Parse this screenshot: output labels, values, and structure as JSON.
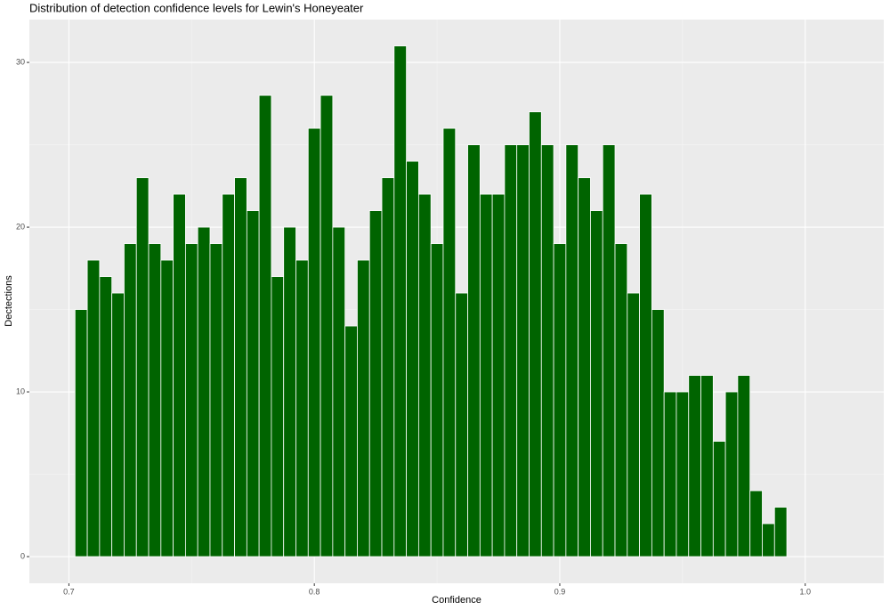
{
  "chart_data": {
    "type": "histogram",
    "title": "Distribution of detection confidence levels for Lewin's Honeyeater",
    "x_label": "Confidence",
    "y_label": "Dectections",
    "bins": [
      0.7025,
      0.7075,
      0.7125,
      0.7175,
      0.7225,
      0.7275,
      0.7325,
      0.7375,
      0.7425,
      0.7475,
      0.7525,
      0.7575,
      0.7625,
      0.7675,
      0.7725,
      0.7775,
      0.7825,
      0.7875,
      0.7925,
      0.7975,
      0.8025,
      0.8075,
      0.8125,
      0.8175,
      0.8225,
      0.8275,
      0.8325,
      0.8375,
      0.8425,
      0.8475,
      0.8525,
      0.8575,
      0.8625,
      0.8675,
      0.8725,
      0.8775,
      0.8825,
      0.8875,
      0.8925,
      0.8975,
      0.9025,
      0.9075,
      0.9125,
      0.9175,
      0.9225,
      0.9275,
      0.9325,
      0.9375,
      0.9425,
      0.9475,
      0.9525,
      0.9575,
      0.9625,
      0.9675,
      0.9725,
      0.9775,
      0.9825,
      0.9875,
      0.9925
    ],
    "values": [
      15,
      18,
      17,
      16,
      19,
      23,
      19,
      18,
      22,
      19,
      20,
      19,
      22,
      23,
      21,
      28,
      17,
      20,
      18,
      26,
      28,
      20,
      14,
      18,
      21,
      23,
      31,
      24,
      22,
      19,
      26,
      16,
      25,
      22,
      22,
      25,
      25,
      27,
      25,
      19,
      25,
      23,
      21,
      25,
      19,
      16,
      22,
      15,
      10,
      10,
      11,
      11,
      7,
      10,
      11,
      4,
      2,
      3
    ],
    "color": "#006400",
    "xlim": [
      0.6839,
      1.032
    ],
    "xticks": [
      0.7,
      0.8,
      0.9,
      {
        "value": 1,
        "label": "1.0"
      }
    ],
    "ylim": [
      -1.62,
      32.6
    ],
    "yticks": [
      0,
      10,
      20,
      30
    ],
    "grid": true
  }
}
